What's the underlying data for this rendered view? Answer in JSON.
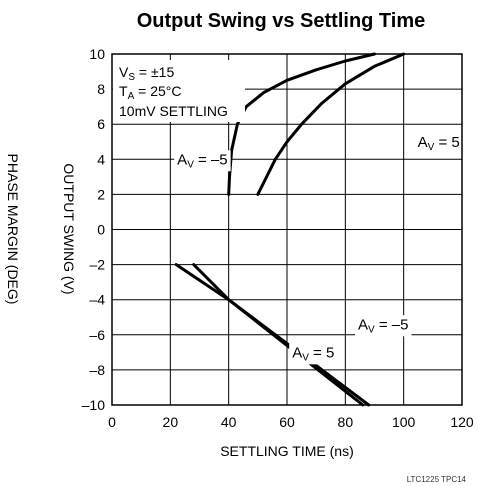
{
  "chart_data": {
    "type": "line",
    "title": "Output Swing vs Settling Time",
    "xlabel": "SETTLING TIME (ns)",
    "ylabel": "OUTPUT SWING (V)",
    "ylabel_outer": "PHASE MARGIN (DEG)",
    "xlim": [
      0,
      120
    ],
    "ylim": [
      -10,
      10
    ],
    "xticks": [
      0,
      20,
      40,
      60,
      80,
      100,
      120
    ],
    "yticks": [
      -10,
      -8,
      -6,
      -4,
      -2,
      0,
      2,
      4,
      6,
      8,
      10
    ],
    "grid": true,
    "conditions": {
      "vs": "±15",
      "ta": "25°C",
      "settling": "10mV SETTLING"
    },
    "series": [
      {
        "name": "AV = –5",
        "label_main": "A",
        "label_sub": "V",
        "label_rest": " = –5",
        "x": [
          40,
          40.3,
          41,
          43,
          46,
          52,
          60,
          70,
          80,
          90
        ],
        "y": [
          2,
          3,
          4.5,
          6,
          7,
          7.8,
          8.5,
          9.1,
          9.6,
          10
        ]
      },
      {
        "name": "AV = 5",
        "label_main": "A",
        "label_sub": "V",
        "label_rest": " = 5",
        "x": [
          50,
          53,
          56,
          60,
          65,
          72,
          80,
          90,
          100
        ],
        "y": [
          2,
          3,
          4,
          5,
          6,
          7.2,
          8.3,
          9.3,
          10
        ]
      },
      {
        "name": "AV = –5",
        "label_main": "A",
        "label_sub": "V",
        "label_rest": " = –5",
        "x": [
          22,
          40,
          88
        ],
        "y": [
          -2,
          -4,
          -10
        ]
      },
      {
        "name": "AV = 5",
        "label_main": "A",
        "label_sub": "V",
        "label_rest": " = 5",
        "x": [
          28,
          40,
          86
        ],
        "y": [
          -2,
          -4,
          -10
        ]
      }
    ]
  },
  "footer": {
    "code": "LTC1225 TPC14"
  }
}
